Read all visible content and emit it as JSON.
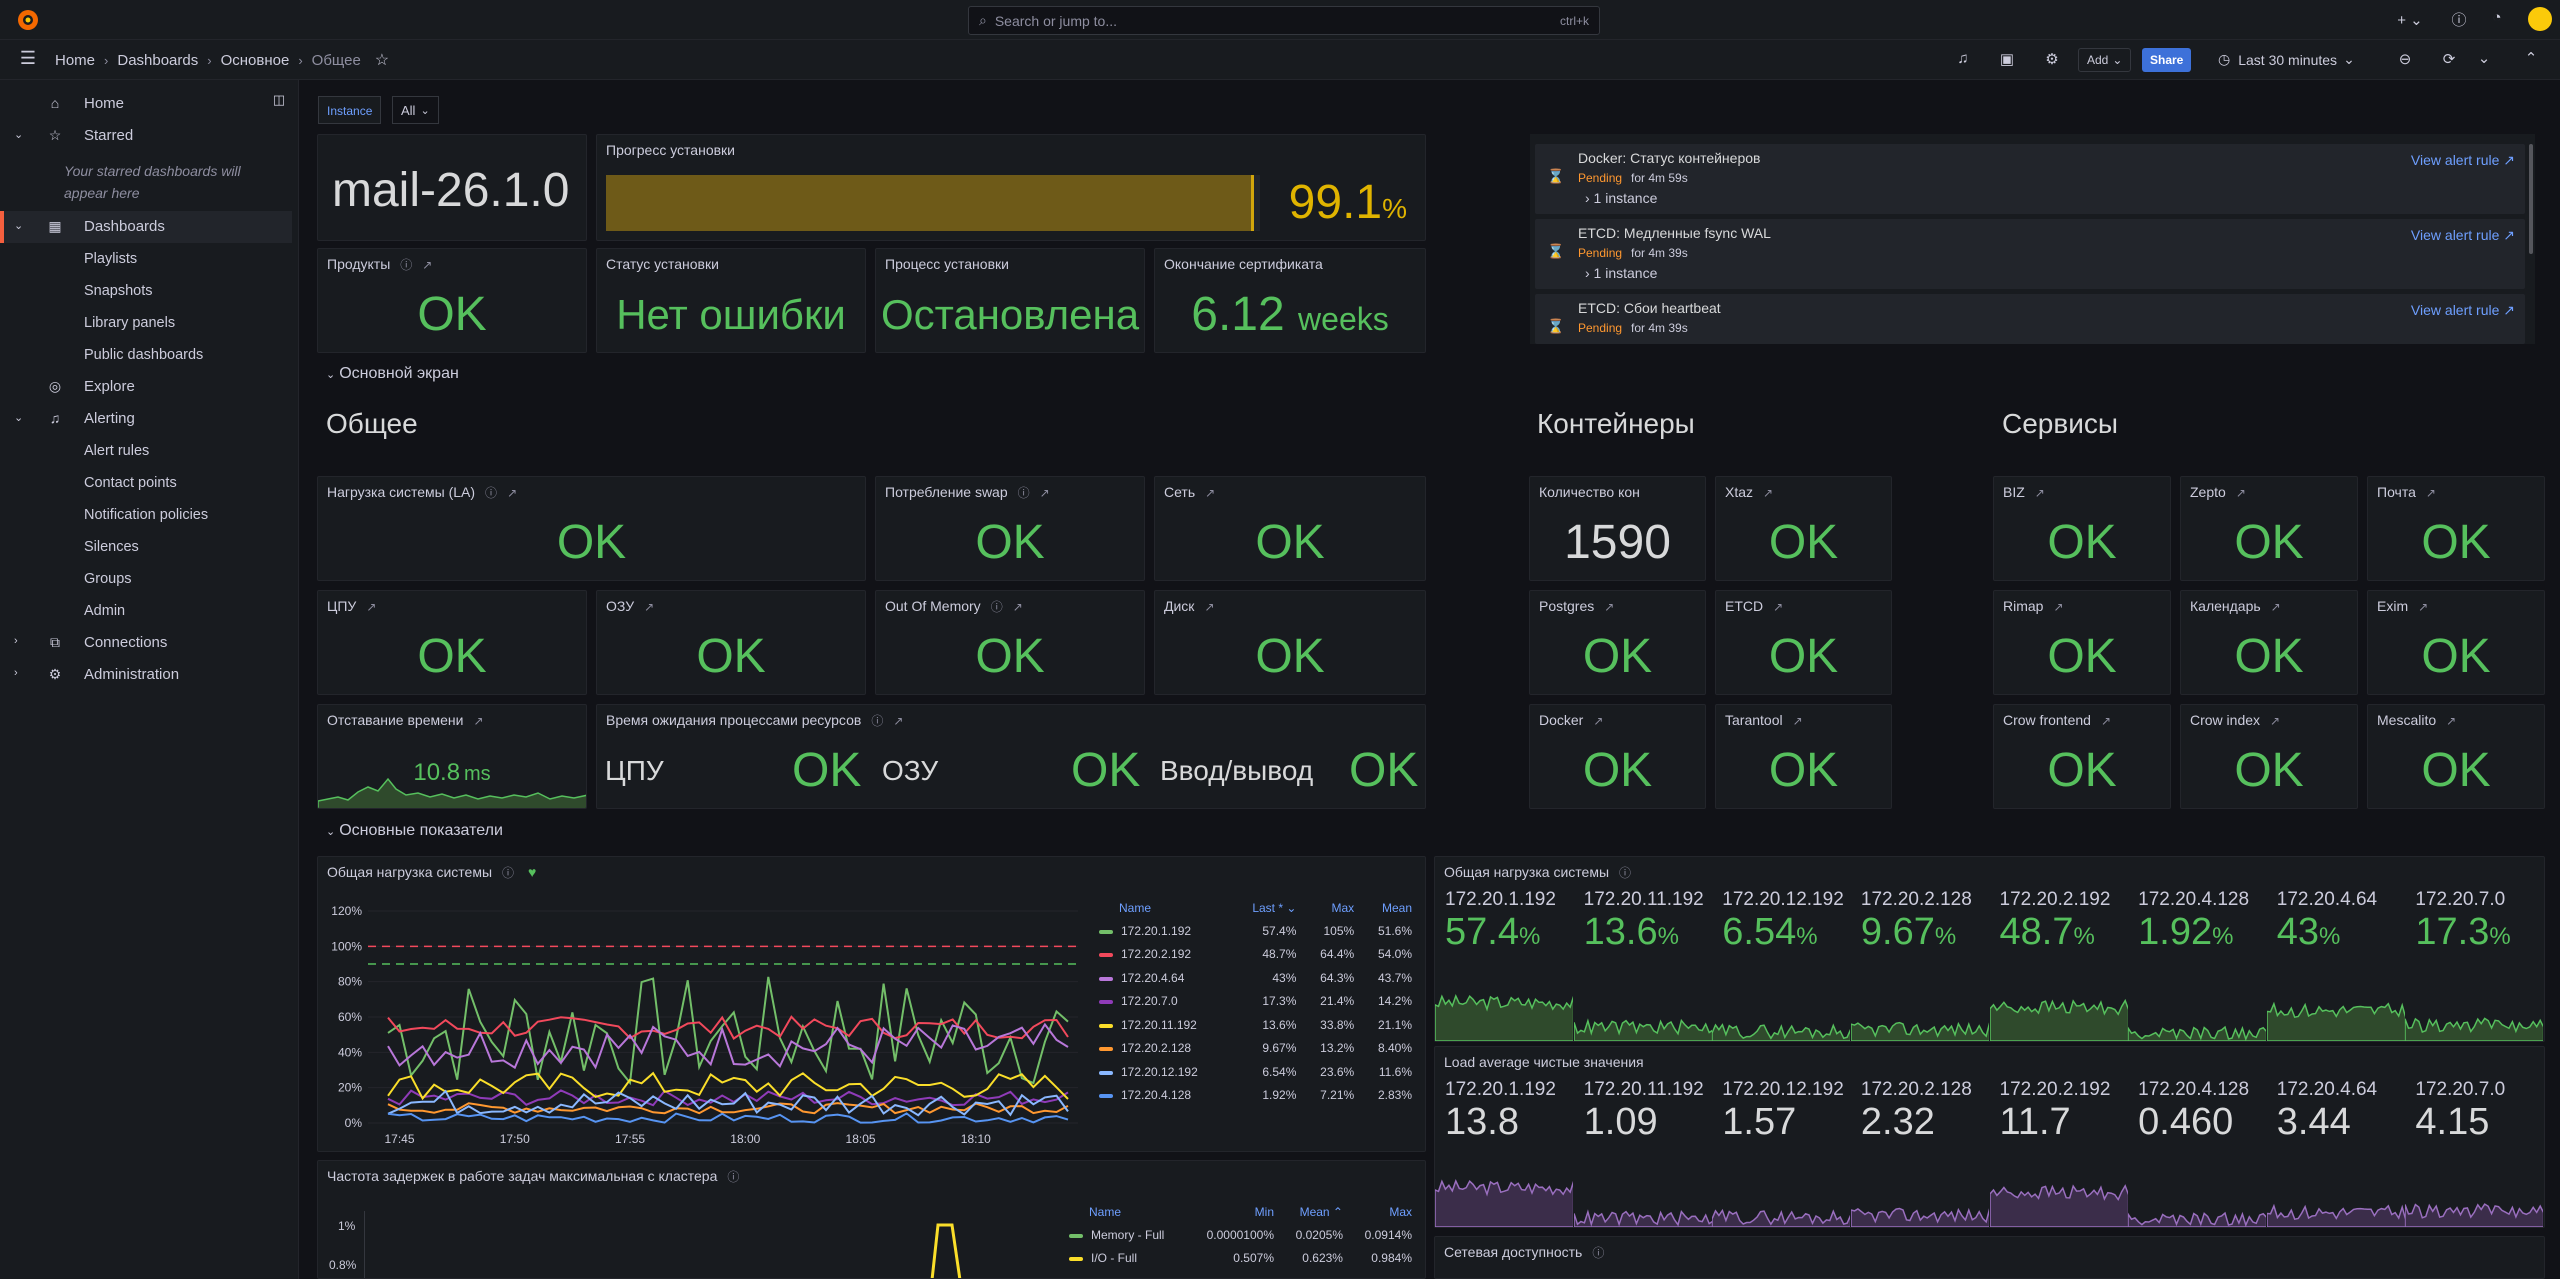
{
  "topbar": {
    "search_placeholder": "Search or jump to...",
    "search_shortcut": "ctrl+k",
    "add_label": "+ ⌄"
  },
  "breadcrumb": {
    "home": "Home",
    "dashboards": "Dashboards",
    "folder": "Основное",
    "current": "Общее"
  },
  "toolbar": {
    "add_label": "Add",
    "share_label": "Share",
    "time_range": "Last 30 minutes"
  },
  "sidebar": {
    "home": "Home",
    "starred": "Starred",
    "starred_empty": "Your starred dashboards will appear here",
    "dashboards": "Dashboards",
    "dash_items": [
      "Playlists",
      "Snapshots",
      "Library panels",
      "Public dashboards"
    ],
    "explore": "Explore",
    "alerting": "Alerting",
    "alert_items": [
      "Alert rules",
      "Contact points",
      "Notification policies",
      "Silences",
      "Groups",
      "Admin"
    ],
    "connections": "Connections",
    "administration": "Administration"
  },
  "variables": {
    "instance_label": "Instance",
    "instance_value": "All"
  },
  "top_panels": {
    "version": "mail-26.1.0",
    "progress_title": "Прогресс установки",
    "progress_value": "99.1",
    "progress_unit": "%",
    "progress_fraction": 0.991,
    "products_title": "Продукты",
    "products_value": "OK",
    "status_title": "Статус установки",
    "status_value": "Нет ошибки",
    "process_title": "Процесс установки",
    "process_value": "Остановлена",
    "cert_title": "Окончание сертификата",
    "cert_value": "6.12",
    "cert_unit": "weeks"
  },
  "alerts": [
    {
      "name": "Docker: Статус контейнеров",
      "state": "Pending",
      "for": "for 4m 59s",
      "instances": "› 1 instance",
      "link": "View alert rule"
    },
    {
      "name": "ETCD: Медленные fsync WAL",
      "state": "Pending",
      "for": "for 4m 39s",
      "instances": "› 1 instance",
      "link": "View alert rule"
    },
    {
      "name": "ETCD: Сбои heartbeat",
      "state": "Pending",
      "for": "for 4m 39s",
      "instances": "",
      "link": "View alert rule"
    }
  ],
  "rows": {
    "main_screen": "Основной экран",
    "main_metrics": "Основные показатели"
  },
  "headers": {
    "general": "Общее",
    "containers": "Контейнеры",
    "services": "Сервисы"
  },
  "general_panels": {
    "la": "Нагрузка системы (LA)",
    "swap": "Потребление swap",
    "net": "Сеть",
    "cpu": "ЦПУ",
    "ram": "ОЗУ",
    "oom": "Out Of Memory",
    "disk": "Диск",
    "time_lag": "Отставание времени",
    "time_lag_value": "10.8",
    "time_lag_unit": "ms",
    "wait": "Время ожидания процессами ресурсов",
    "wait_cpu": "ЦПУ",
    "wait_ram": "ОЗУ",
    "wait_io": "Ввод/вывод",
    "ok": "OK"
  },
  "containers": {
    "count_title": "Количество кон",
    "count_value": "1590",
    "xtaz": "Xtaz",
    "postgres": "Postgres",
    "etcd": "ETCD",
    "docker": "Docker",
    "tarantool": "Tarantool"
  },
  "services": [
    "BIZ",
    "Zepto",
    "Почта",
    "Rimap",
    "Календарь",
    "Exim",
    "Crow frontend",
    "Crow index",
    "Mescalito"
  ],
  "load_chart": {
    "title": "Общая нагрузка системы",
    "legend_headers": [
      "Name",
      "Last * ⌄",
      "Max",
      "Mean"
    ],
    "legend": [
      {
        "name": "172.20.1.192",
        "last": "57.4%",
        "max": "105%",
        "mean": "51.6%",
        "color": "#73bf69"
      },
      {
        "name": "172.20.2.192",
        "last": "48.7%",
        "max": "64.4%",
        "mean": "54.0%",
        "color": "#f2495c"
      },
      {
        "name": "172.20.4.64",
        "last": "43%",
        "max": "64.3%",
        "mean": "43.7%",
        "color": "#b877d9"
      },
      {
        "name": "172.20.7.0",
        "last": "17.3%",
        "max": "21.4%",
        "mean": "14.2%",
        "color": "#8f3bb8"
      },
      {
        "name": "172.20.11.192",
        "last": "13.6%",
        "max": "33.8%",
        "mean": "21.1%",
        "color": "#fade2a"
      },
      {
        "name": "172.20.2.128",
        "last": "9.67%",
        "max": "13.2%",
        "mean": "8.40%",
        "color": "#ff9830"
      },
      {
        "name": "172.20.12.192",
        "last": "6.54%",
        "max": "23.6%",
        "mean": "11.6%",
        "color": "#8ab8ff"
      },
      {
        "name": "172.20.4.128",
        "last": "1.92%",
        "max": "7.21%",
        "mean": "2.83%",
        "color": "#5794f2"
      }
    ],
    "y_ticks": [
      "120%",
      "100%",
      "80%",
      "60%",
      "40%",
      "20%",
      "0%"
    ],
    "x_ticks": [
      "17:45",
      "17:50",
      "17:55",
      "18:00",
      "18:05",
      "18:10"
    ]
  },
  "load_stats": {
    "title": "Общая нагрузка системы",
    "items": [
      {
        "host": "172.20.1.192",
        "value": "57.4",
        "unit": "%"
      },
      {
        "host": "172.20.11.192",
        "value": "13.6",
        "unit": "%"
      },
      {
        "host": "172.20.12.192",
        "value": "6.54",
        "unit": "%"
      },
      {
        "host": "172.20.2.128",
        "value": "9.67",
        "unit": "%"
      },
      {
        "host": "172.20.2.192",
        "value": "48.7",
        "unit": "%"
      },
      {
        "host": "172.20.4.128",
        "value": "1.92",
        "unit": "%"
      },
      {
        "host": "172.20.4.64",
        "value": "43",
        "unit": "%"
      },
      {
        "host": "172.20.7.0",
        "value": "17.3",
        "unit": "%"
      }
    ]
  },
  "la_stats": {
    "title": "Load average чистые значения",
    "items": [
      {
        "host": "172.20.1.192",
        "value": "13.8"
      },
      {
        "host": "172.20.11.192",
        "value": "1.09"
      },
      {
        "host": "172.20.12.192",
        "value": "1.57"
      },
      {
        "host": "172.20.2.128",
        "value": "2.32"
      },
      {
        "host": "172.20.2.192",
        "value": "11.7"
      },
      {
        "host": "172.20.4.128",
        "value": "0.460"
      },
      {
        "host": "172.20.4.64",
        "value": "3.44"
      },
      {
        "host": "172.20.7.0",
        "value": "4.15"
      }
    ]
  },
  "delay_chart": {
    "title": "Частота задержек в работе задач максимальная с кластера",
    "legend_headers": [
      "Name",
      "Min",
      "Mean ⌃",
      "Max"
    ],
    "legend": [
      {
        "name": "Memory - Full",
        "min": "0.0000100%",
        "mean": "0.0205%",
        "max": "0.0914%",
        "color": "#73bf69"
      },
      {
        "name": "I/O - Full",
        "min": "0.507%",
        "mean": "0.623%",
        "max": "0.984%",
        "color": "#fade2a"
      }
    ],
    "y_ticks": [
      "1%",
      "0.8%"
    ]
  },
  "network": {
    "title": "Сетевая доступность"
  },
  "colors": {
    "ok": "#56c05d",
    "accent": "#3d71d9",
    "progress": "#6e5a18",
    "pending": "#ff9830",
    "link": "#6e9fff"
  }
}
